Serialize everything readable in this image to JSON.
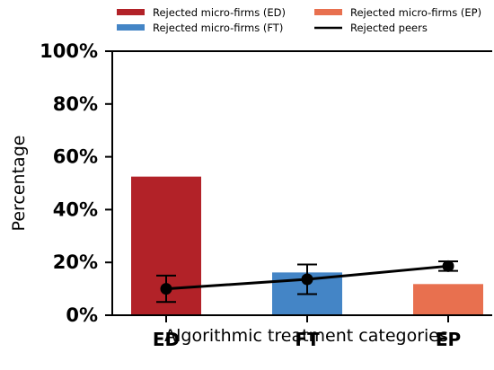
{
  "chart_data": {
    "type": "bar",
    "xlabel": "Algorithmic treatment categories",
    "ylabel": "Percentage",
    "categories": [
      "ED",
      "FT",
      "EP"
    ],
    "ylim": [
      0,
      100
    ],
    "yticks": [
      0,
      20,
      40,
      60,
      80,
      100
    ],
    "ytick_labels": [
      "0%",
      "20%",
      "40%",
      "60%",
      "80%",
      "100%"
    ],
    "bars": {
      "values": [
        52.5,
        16.2,
        11.8
      ],
      "colors": [
        "#b22228",
        "#4485c6",
        "#e8704f"
      ],
      "names": [
        "Rejected micro-firms (ED)",
        "Rejected micro-firms (FT)",
        "Rejected micro-firms (EP)"
      ]
    },
    "line_series": {
      "name": "Rejected peers",
      "color": "#000000",
      "values": [
        10.0,
        13.6,
        18.6
      ],
      "error_low": [
        5.0,
        8.0,
        16.8
      ],
      "error_high": [
        15.0,
        19.2,
        20.4
      ]
    },
    "legend": {
      "placement": "top",
      "entries": [
        {
          "label": "Rejected micro-firms (ED)",
          "color": "#b22228",
          "kind": "bar"
        },
        {
          "label": "Rejected micro-firms (EP)",
          "color": "#e8704f",
          "kind": "bar"
        },
        {
          "label": "Rejected micro-firms (FT)",
          "color": "#4485c6",
          "kind": "bar"
        },
        {
          "label": "Rejected peers",
          "color": "#000000",
          "kind": "line"
        }
      ]
    },
    "grid": false
  }
}
